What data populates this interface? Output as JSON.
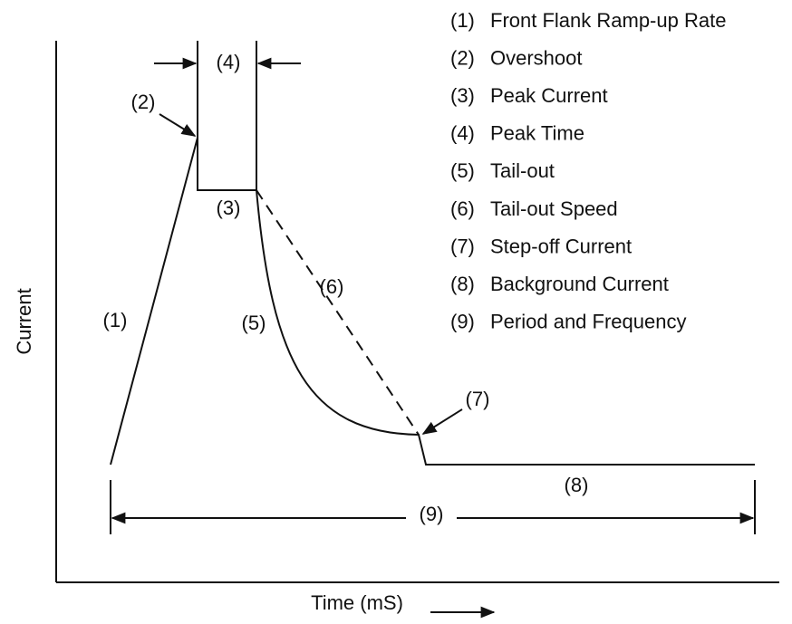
{
  "axes": {
    "y_label": "Current",
    "x_label": "Time (mS)"
  },
  "annotations": [
    "(1)",
    "(2)",
    "(3)",
    "(4)",
    "(5)",
    "(6)",
    "(7)",
    "(8)",
    "(9)"
  ],
  "legend": [
    {
      "number": "(1)",
      "text": "Front Flank Ramp-up Rate"
    },
    {
      "number": "(2)",
      "text": "Overshoot"
    },
    {
      "number": "(3)",
      "text": "Peak Current"
    },
    {
      "number": "(4)",
      "text": "Peak Time"
    },
    {
      "number": "(5)",
      "text": "Tail-out"
    },
    {
      "number": "(6)",
      "text": "Tail-out Speed"
    },
    {
      "number": "(7)",
      "text": "Step-off Current"
    },
    {
      "number": "(8)",
      "text": "Background Current"
    },
    {
      "number": "(9)",
      "text": "Period and Frequency"
    }
  ]
}
